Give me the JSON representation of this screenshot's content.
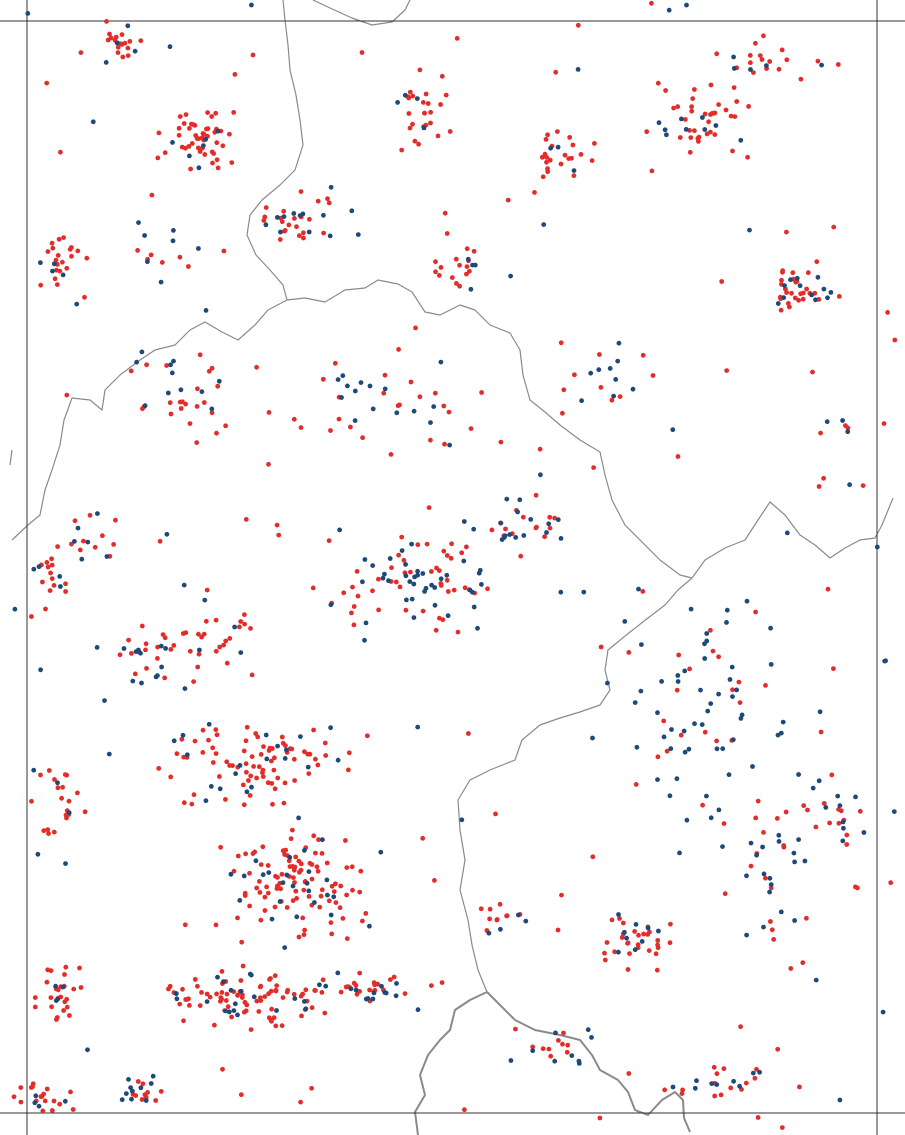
{
  "map": {
    "colors": {
      "background": "#ffffff",
      "frame": "#333333",
      "border": "#8a8a8a",
      "series_red": "#e32d2a",
      "series_blue": "#1d4a7a"
    },
    "series": [
      {
        "color": "#e32d2a",
        "approx_point_count": 900
      },
      {
        "color": "#1d4a7a",
        "approx_point_count": 330
      }
    ]
  }
}
